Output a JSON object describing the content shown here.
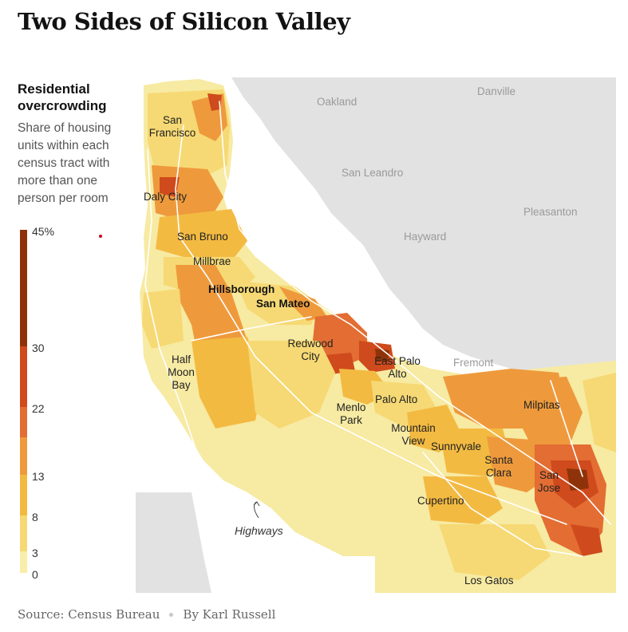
{
  "title": "Two Sides of Silicon Valley",
  "legend": {
    "title": "Residential overcrowding",
    "subtitle": "Share of housing units within each census tract with more than one person per room",
    "ticks": [
      "45%",
      "30",
      "22",
      "13",
      "8",
      "3",
      "0"
    ],
    "tick_values": [
      45,
      30,
      22,
      13,
      8,
      3,
      0
    ],
    "bins": [
      {
        "from": 0,
        "to": 3,
        "color": "#f8eeaa"
      },
      {
        "from": 3,
        "to": 8,
        "color": "#f6d974"
      },
      {
        "from": 8,
        "to": 13,
        "color": "#f3ba42"
      },
      {
        "from": 13,
        "to": 18,
        "color": "#ee9a3c"
      },
      {
        "from": 18,
        "to": 22,
        "color": "#e36d33"
      },
      {
        "from": 22,
        "to": 30,
        "color": "#cf4a1c"
      },
      {
        "from": 30,
        "to": 45,
        "color": "#8e3309"
      }
    ],
    "marker_color": "#d0021b"
  },
  "map": {
    "bay_places": [
      "Oakland",
      "Danville",
      "San Leandro",
      "Pleasanton",
      "Hayward",
      "Fremont"
    ],
    "land_places": [
      "San Francisco",
      "Daly City",
      "San Bruno",
      "Millbrae",
      "Half Moon Bay",
      "Redwood City",
      "East Palo Alto",
      "Palo Alto",
      "Menlo Park",
      "Mountain View",
      "Sunnyvale",
      "Milpitas",
      "Santa Clara",
      "San Jose",
      "Cupertino",
      "Los Gatos"
    ],
    "highlighted_places": [
      "Hillsborough",
      "San Mateo"
    ],
    "annotation": "Highways",
    "colors": {
      "water": "#ffffff",
      "east_bay": "#e2e2e2",
      "highway": "#ffffff"
    }
  },
  "footer": {
    "source": "Source: Census Bureau",
    "byline": "By Karl Russell"
  }
}
